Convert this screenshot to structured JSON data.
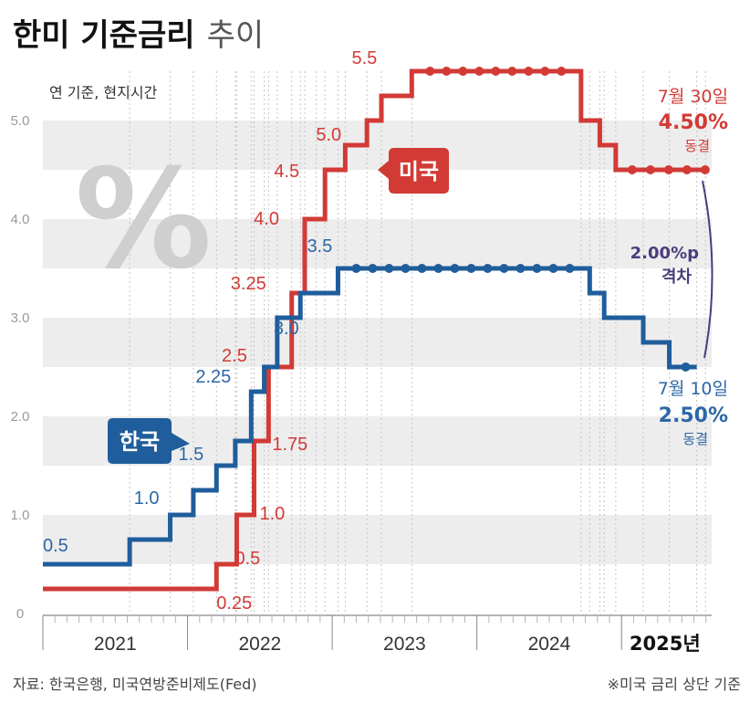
{
  "title": {
    "main": "한미 기준금리",
    "sub": "추이"
  },
  "note": "연 기준, 현지시간",
  "percent_symbol": "%",
  "legend": {
    "us": "미국",
    "korea": "한국"
  },
  "colors": {
    "us": "#d23a36",
    "korea": "#1f5d9c",
    "gap": "#4b3c7c",
    "band": "#ededed"
  },
  "source": "자료: 한국은행, 미국연방준비제도(Fed)",
  "footnote": "※미국 금리 상단 기준",
  "chart_data": {
    "type": "line",
    "step": true,
    "title": "한미 기준금리 추이",
    "ylabel": "%",
    "ylim": [
      0,
      5.5
    ],
    "yticks": [
      "0",
      "1.0",
      "2.0",
      "3.0",
      "4.0",
      "5.0"
    ],
    "xlim": [
      2021.0,
      2025.6
    ],
    "xticks": [
      "2021",
      "2022",
      "2023",
      "2024",
      "2025년"
    ],
    "series": [
      {
        "name": "미국",
        "x": [
          2021.0,
          2022.2,
          2022.34,
          2022.46,
          2022.56,
          2022.72,
          2022.81,
          2022.95,
          2023.09,
          2023.24,
          2023.34,
          2023.55,
          2024.72,
          2024.85,
          2024.96,
          2025.58
        ],
        "values": [
          0.25,
          0.5,
          1.0,
          1.75,
          2.5,
          3.25,
          4.0,
          4.5,
          4.75,
          5.0,
          5.25,
          5.5,
          5.0,
          4.75,
          4.5,
          4.5
        ]
      },
      {
        "name": "한국",
        "x": [
          2021.0,
          2021.6,
          2021.88,
          2022.04,
          2022.2,
          2022.33,
          2022.44,
          2022.53,
          2022.62,
          2022.78,
          2022.89,
          2023.04,
          2024.78,
          2024.88,
          2025.15,
          2025.33,
          2025.52
        ],
        "values": [
          0.5,
          0.75,
          1.0,
          1.25,
          1.5,
          1.75,
          2.25,
          2.5,
          3.0,
          3.25,
          3.25,
          3.5,
          3.25,
          3.0,
          2.75,
          2.5,
          2.5
        ]
      }
    ],
    "point_labels": [
      {
        "series": "미국",
        "text": "0.25",
        "x": 2022.2,
        "y": 0.25
      },
      {
        "series": "미국",
        "text": "0.5",
        "x": 2022.34,
        "y": 0.5
      },
      {
        "series": "미국",
        "text": "1.0",
        "x": 2022.46,
        "y": 1.0
      },
      {
        "series": "미국",
        "text": "1.75",
        "x": 2022.56,
        "y": 1.75
      },
      {
        "series": "미국",
        "text": "2.5",
        "x": 2022.5,
        "y": 2.5
      },
      {
        "series": "미국",
        "text": "3.25",
        "x": 2022.72,
        "y": 3.25
      },
      {
        "series": "미국",
        "text": "4.0",
        "x": 2022.81,
        "y": 4.0
      },
      {
        "series": "미국",
        "text": "4.5",
        "x": 2022.95,
        "y": 4.5
      },
      {
        "series": "미국",
        "text": "5.0",
        "x": 2023.24,
        "y": 5.0
      },
      {
        "series": "미국",
        "text": "5.5",
        "x": 2023.55,
        "y": 5.5
      },
      {
        "series": "한국",
        "text": "0.5",
        "x": 2021.0,
        "y": 0.5
      },
      {
        "series": "한국",
        "text": "1.0",
        "x": 2021.88,
        "y": 1.0
      },
      {
        "series": "한국",
        "text": "1.5",
        "x": 2022.2,
        "y": 1.5
      },
      {
        "series": "한국",
        "text": "2.25",
        "x": 2022.44,
        "y": 2.25
      },
      {
        "series": "한국",
        "text": "3.0",
        "x": 2022.62,
        "y": 3.0
      },
      {
        "series": "한국",
        "text": "3.5",
        "x": 2023.04,
        "y": 3.5
      }
    ],
    "annotations": {
      "us": {
        "date": "7월 30일",
        "rate": "4.50%",
        "status": "동결"
      },
      "korea": {
        "date": "7월 10일",
        "rate": "2.50%",
        "status": "동결"
      },
      "gap": {
        "value": "2.00%p",
        "label": "격차"
      }
    }
  }
}
